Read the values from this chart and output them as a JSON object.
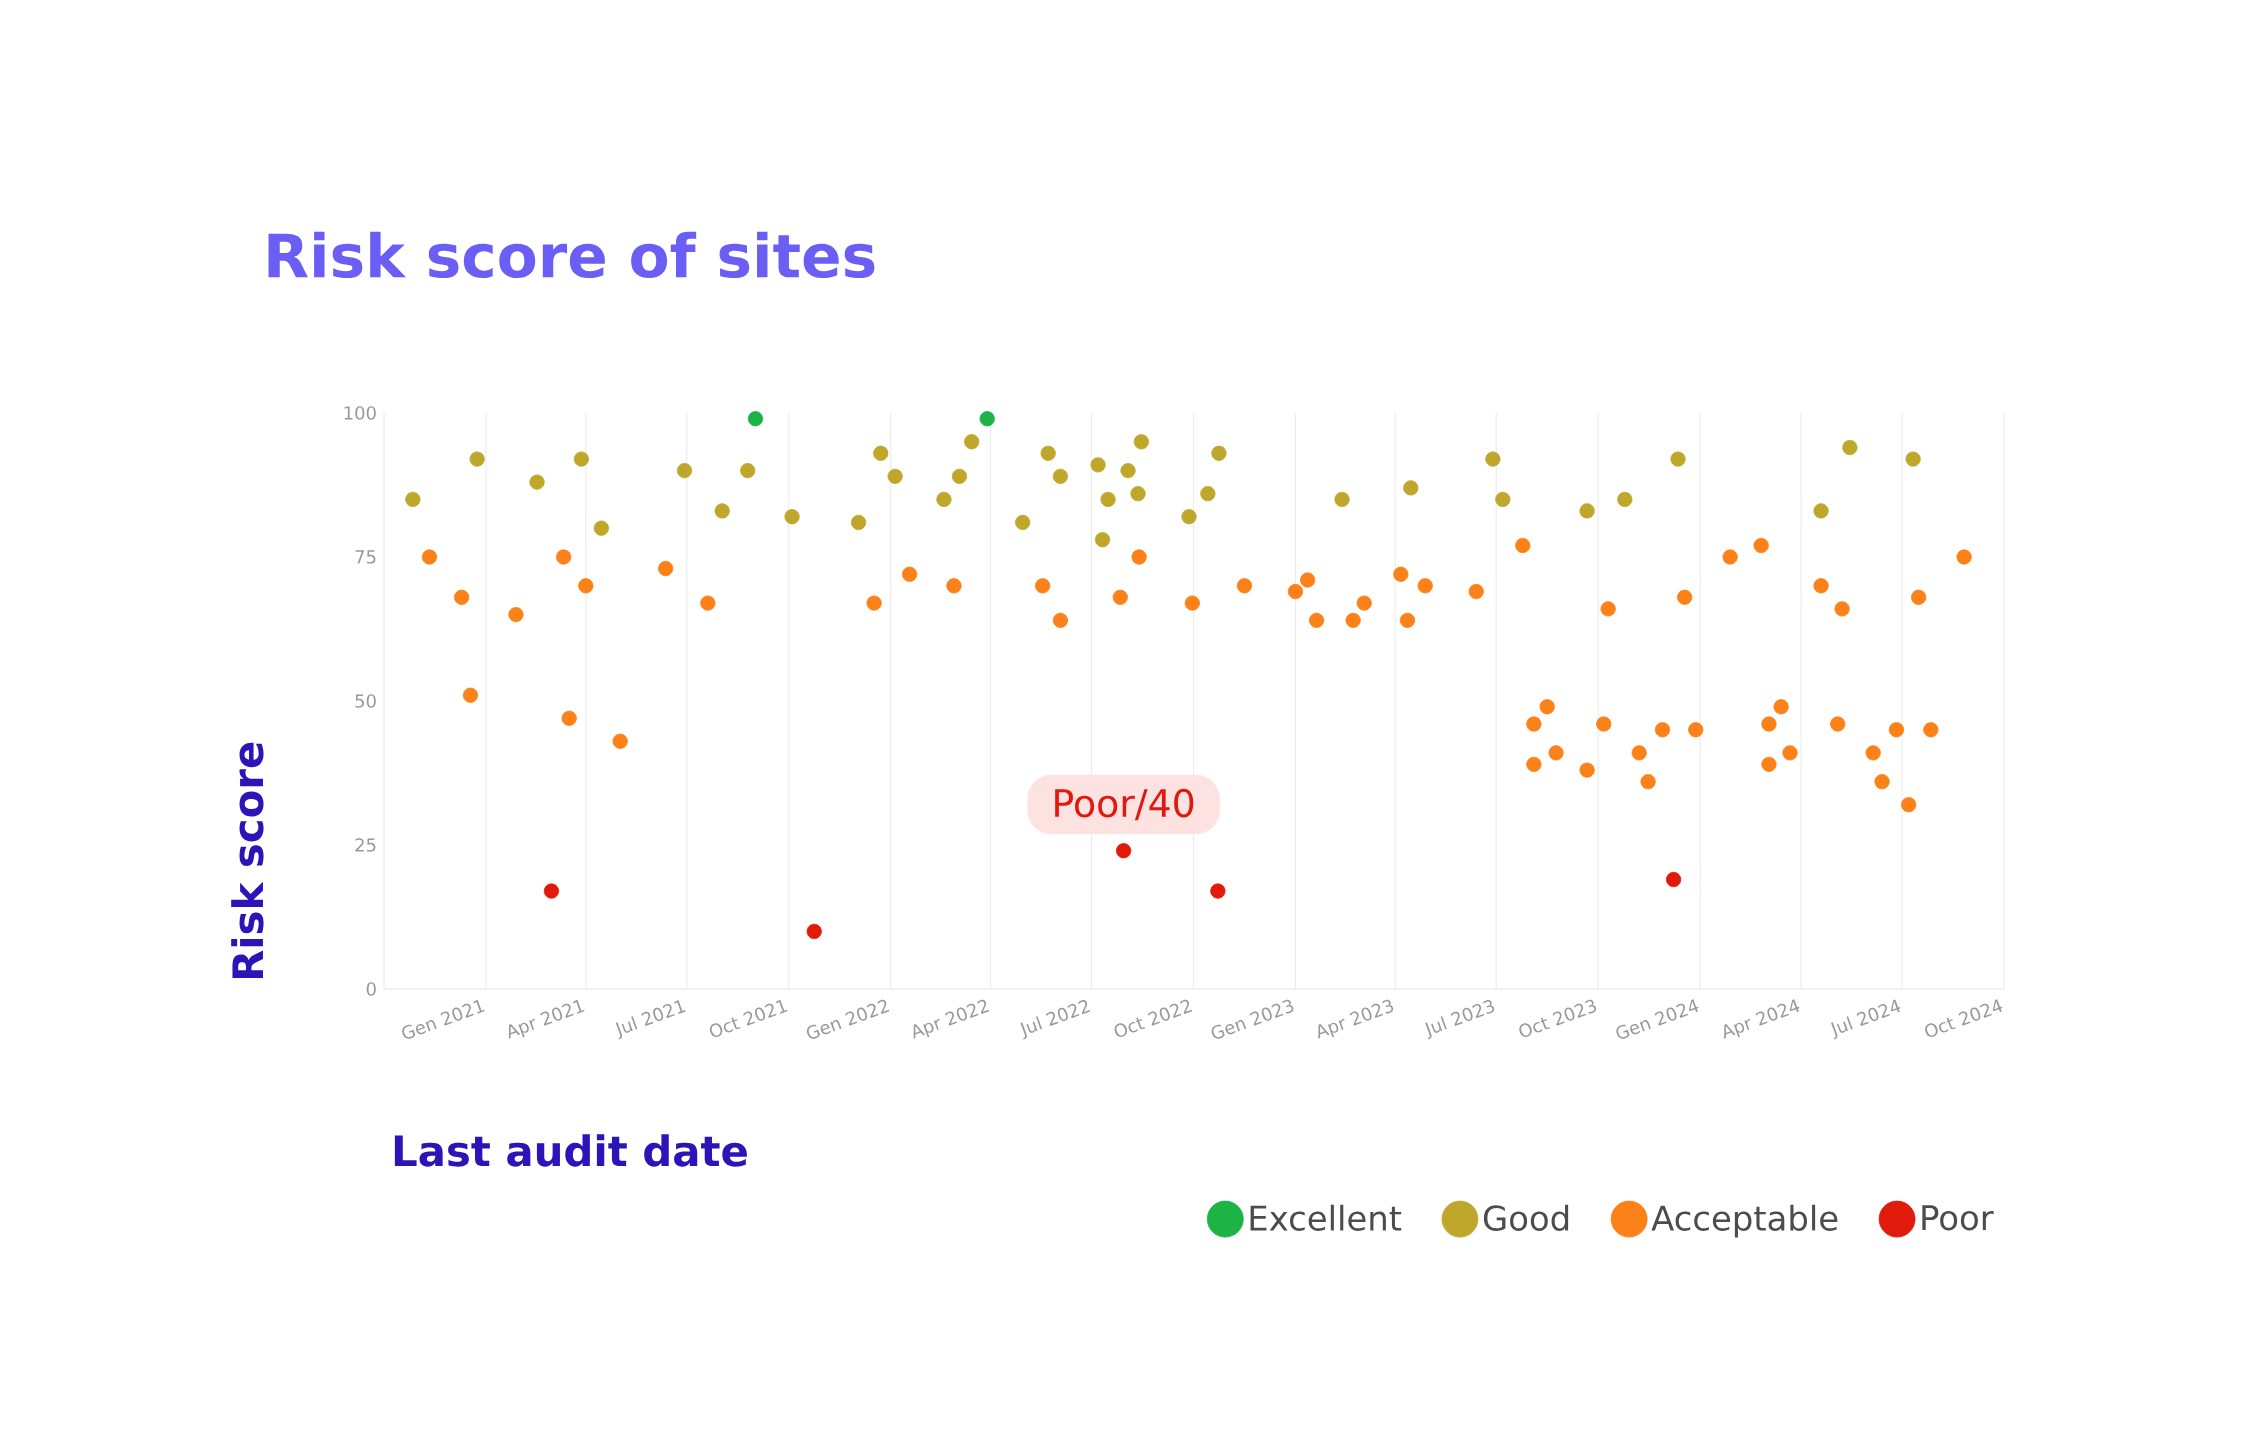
{
  "chart_data": {
    "type": "scatter",
    "title": "Risk score of sites",
    "xlabel": "Last audit date",
    "ylabel": "Risk score",
    "xlim": [
      "2020-10-01",
      "2024-10-01"
    ],
    "xticks": [
      {
        "value": "2021-01-01",
        "label": "Gen 2021"
      },
      {
        "value": "2021-04-01",
        "label": "Apr 2021"
      },
      {
        "value": "2021-07-01",
        "label": "Jul 2021"
      },
      {
        "value": "2021-10-01",
        "label": "Oct 2021"
      },
      {
        "value": "2022-01-01",
        "label": "Gen 2022"
      },
      {
        "value": "2022-04-01",
        "label": "Apr 2022"
      },
      {
        "value": "2022-07-01",
        "label": "Jul 2022"
      },
      {
        "value": "2022-10-01",
        "label": "Oct 2022"
      },
      {
        "value": "2023-01-01",
        "label": "Gen 2023"
      },
      {
        "value": "2023-04-01",
        "label": "Apr 2023"
      },
      {
        "value": "2023-07-01",
        "label": "Jul 2023"
      },
      {
        "value": "2023-10-01",
        "label": "Oct 2023"
      },
      {
        "value": "2024-01-01",
        "label": "Gen 2024"
      },
      {
        "value": "2024-04-01",
        "label": "Apr 2024"
      },
      {
        "value": "2024-07-01",
        "label": "Jul 2024"
      },
      {
        "value": "2024-10-01",
        "label": "Oct 2024"
      }
    ],
    "ylim": [
      0,
      100
    ],
    "yticks": [
      0,
      25,
      50,
      75,
      100
    ],
    "grid": "x",
    "legend": "bottom right",
    "annotations": [
      {
        "text": "Poor/40",
        "x": "2022-07-30",
        "y": 24
      }
    ],
    "series": [
      {
        "name": "Excellent",
        "color": "#1db345",
        "x": [
          "2021-09-01",
          "2022-03-29"
        ],
        "values": [
          99,
          99
        ]
      },
      {
        "name": "Good",
        "color": "#bfa72c",
        "x": [
          "2020-10-27",
          "2020-12-24",
          "2021-02-16",
          "2021-03-28",
          "2021-04-15",
          "2021-06-29",
          "2021-08-02",
          "2021-08-25",
          "2021-10-04",
          "2021-12-03",
          "2021-12-23",
          "2022-01-05",
          "2022-02-18",
          "2022-03-04",
          "2022-03-15",
          "2022-04-30",
          "2022-05-23",
          "2022-06-03",
          "2022-07-07",
          "2022-07-11",
          "2022-07-16",
          "2022-08-03",
          "2022-08-12",
          "2022-08-15",
          "2022-09-27",
          "2022-10-14",
          "2022-10-24",
          "2023-02-12",
          "2023-04-15",
          "2023-06-28",
          "2023-07-07",
          "2023-09-21",
          "2023-10-25",
          "2023-12-12",
          "2024-04-19",
          "2024-05-15",
          "2024-07-11"
        ],
        "values": [
          85,
          92,
          88,
          92,
          80,
          90,
          83,
          90,
          82,
          81,
          93,
          89,
          85,
          89,
          95,
          81,
          93,
          89,
          91,
          78,
          85,
          90,
          86,
          95,
          82,
          86,
          93,
          85,
          87,
          92,
          85,
          83,
          85,
          92,
          83,
          94,
          92
        ]
      },
      {
        "name": "Acceptable",
        "color": "#fb8118",
        "x": [
          "2020-11-11",
          "2020-12-10",
          "2020-12-18",
          "2021-01-28",
          "2021-03-12",
          "2021-03-17",
          "2021-04-01",
          "2021-05-02",
          "2021-06-12",
          "2021-07-20",
          "2021-12-17",
          "2022-01-18",
          "2022-02-27",
          "2022-05-18",
          "2022-06-03",
          "2022-07-27",
          "2022-08-13",
          "2022-09-30",
          "2022-11-16",
          "2023-01-01",
          "2023-01-12",
          "2023-01-20",
          "2023-02-22",
          "2023-03-04",
          "2023-04-06",
          "2023-04-12",
          "2023-04-28",
          "2023-06-13",
          "2023-07-25",
          "2023-08-04",
          "2023-08-16",
          "2023-08-04",
          "2023-08-24",
          "2023-09-21",
          "2023-10-06",
          "2023-10-10",
          "2023-11-07",
          "2023-11-15",
          "2023-11-28",
          "2023-12-18",
          "2023-12-28",
          "2024-01-28",
          "2024-02-25",
          "2024-03-03",
          "2024-03-03",
          "2024-03-14",
          "2024-03-22",
          "2024-04-19",
          "2024-05-04",
          "2024-05-08",
          "2024-06-05",
          "2024-06-13",
          "2024-06-26",
          "2024-07-07",
          "2024-07-16",
          "2024-07-27",
          "2024-08-26"
        ],
        "values": [
          75,
          68,
          51,
          65,
          75,
          47,
          70,
          43,
          73,
          67,
          67,
          72,
          70,
          70,
          64,
          68,
          75,
          67,
          70,
          69,
          71,
          64,
          64,
          67,
          72,
          64,
          70,
          69,
          77,
          46,
          49,
          39,
          41,
          38,
          46,
          66,
          41,
          36,
          45,
          68,
          45,
          75,
          77,
          46,
          39,
          49,
          41,
          70,
          46,
          66,
          41,
          36,
          45,
          32,
          68,
          45,
          75
        ]
      },
      {
        "name": "Poor",
        "color": "#e01b0c",
        "x": [
          "2021-03-01",
          "2021-10-24",
          "2022-07-30",
          "2022-10-23",
          "2023-12-08"
        ],
        "values": [
          17,
          10,
          24,
          17,
          19
        ]
      }
    ]
  }
}
